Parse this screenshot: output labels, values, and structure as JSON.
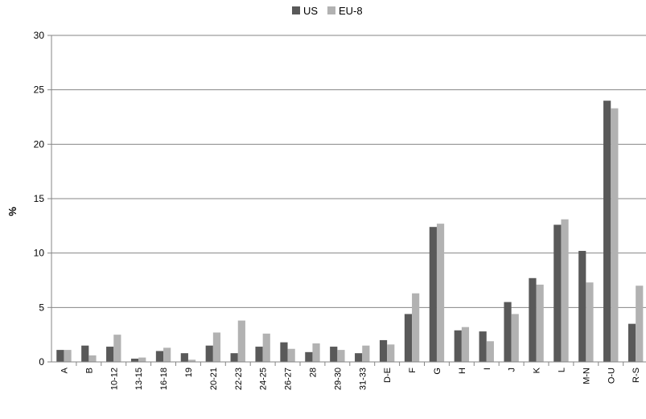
{
  "chart_data": {
    "type": "bar",
    "ylabel": "%",
    "ylim": [
      0,
      30
    ],
    "yticks": [
      0,
      5,
      10,
      15,
      20,
      25,
      30
    ],
    "grid": true,
    "legend_position": "top-center",
    "categories": [
      "A",
      "B",
      "10-12",
      "13-15",
      "16-18",
      "19",
      "20-21",
      "22-23",
      "24-25",
      "26-27",
      "28",
      "29-30",
      "31-33",
      "D-E",
      "F",
      "G",
      "H",
      "I",
      "J",
      "K",
      "L",
      "M-N",
      "O-U",
      "R-S"
    ],
    "series": [
      {
        "name": "US",
        "color": "#595959",
        "values": [
          1.1,
          1.5,
          1.4,
          0.3,
          1.0,
          0.8,
          1.5,
          0.8,
          1.4,
          1.8,
          0.9,
          1.4,
          0.8,
          2.0,
          4.4,
          12.4,
          2.9,
          2.8,
          5.5,
          7.7,
          12.6,
          10.2,
          24.0,
          3.5
        ]
      },
      {
        "name": "EU-8",
        "color": "#b2b2b2",
        "values": [
          1.1,
          0.6,
          2.5,
          0.4,
          1.3,
          0.2,
          2.7,
          3.8,
          2.6,
          1.2,
          1.7,
          1.1,
          1.5,
          1.6,
          6.3,
          12.7,
          3.2,
          1.9,
          4.4,
          7.1,
          13.1,
          7.3,
          23.3,
          7.0
        ]
      }
    ]
  }
}
